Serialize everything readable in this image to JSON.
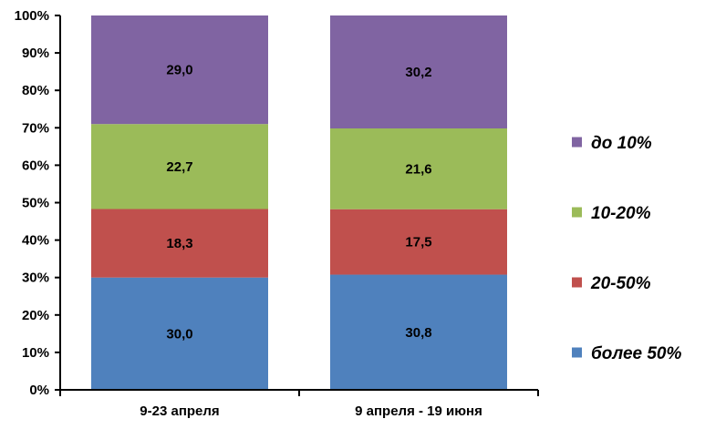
{
  "chart_data": {
    "type": "bar",
    "stacked": true,
    "percent_stacked": true,
    "categories": [
      "9-23 апреля",
      "9 апреля - 19 июня"
    ],
    "series": [
      {
        "name": "более 50%",
        "values": [
          30.0,
          30.8
        ],
        "labels": [
          "30,0",
          "30,8"
        ],
        "color": "#4F81BD"
      },
      {
        "name": "20-50%",
        "values": [
          18.3,
          17.5
        ],
        "labels": [
          "18,3",
          "17,5"
        ],
        "color": "#C0504D"
      },
      {
        "name": "10-20%",
        "values": [
          22.7,
          21.6
        ],
        "labels": [
          "22,7",
          "21,6"
        ],
        "color": "#9BBB59"
      },
      {
        "name": "до 10%",
        "values": [
          29.0,
          30.2
        ],
        "labels": [
          "29,0",
          "30,2"
        ],
        "color": "#8064A2"
      }
    ],
    "yticks": [
      "0%",
      "10%",
      "20%",
      "30%",
      "40%",
      "50%",
      "60%",
      "70%",
      "80%",
      "90%",
      "100%"
    ],
    "ylim": [
      0,
      100
    ],
    "title": "",
    "xlabel": "",
    "ylabel": "",
    "grid": false,
    "legend_position": "right",
    "legend_order": [
      "до 10%",
      "10-20%",
      "20-50%",
      "более 50%"
    ]
  }
}
